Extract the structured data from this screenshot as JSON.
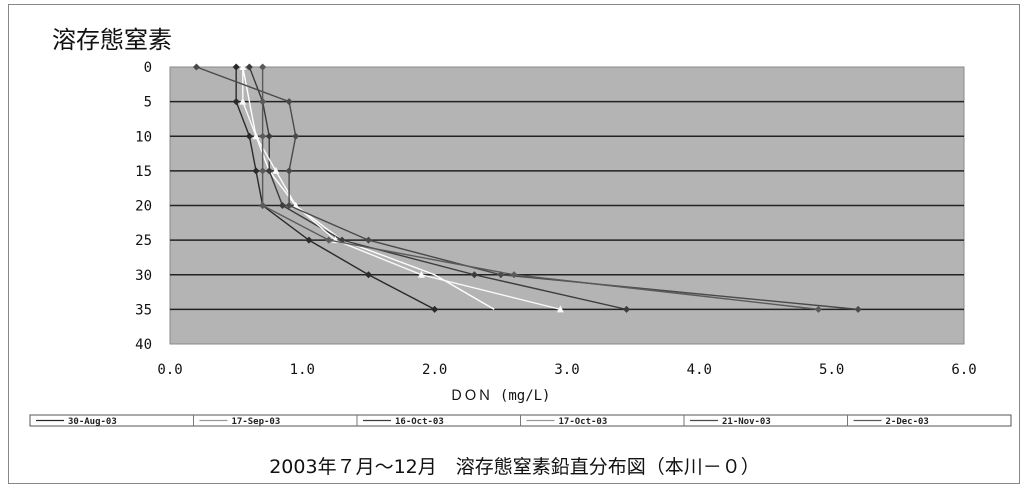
{
  "chart_data": {
    "type": "line",
    "title": "溶存態窒素",
    "caption": "2003年７月～12月　溶存態窒素鉛直分布図（本川－０）",
    "xlabel": "ＤＯＮ (mg/L)",
    "ylabel": "",
    "xlim": [
      0,
      6
    ],
    "ylim": [
      40,
      0
    ],
    "x_ticks": [
      "0.0",
      "1.0",
      "2.0",
      "3.0",
      "4.0",
      "5.0",
      "6.0"
    ],
    "y_ticks": [
      "0",
      "5",
      "10",
      "15",
      "20",
      "25",
      "30",
      "35",
      "40"
    ],
    "grid": "horizontal",
    "legend_position": "bottom",
    "depth": [
      0,
      5,
      10,
      15,
      20,
      25,
      30,
      35
    ],
    "series": [
      {
        "name": "30-Aug-03",
        "color": "#2a2a2a",
        "marker": "diamond",
        "values": [
          0.5,
          0.5,
          0.6,
          0.65,
          0.7,
          1.05,
          1.5,
          2.0
        ]
      },
      {
        "name": "17-Sep-03",
        "color": "#ffffff",
        "marker": "none",
        "values": [
          0.55,
          0.6,
          0.65,
          0.75,
          0.95,
          1.3,
          2.0,
          2.45
        ]
      },
      {
        "name": "16-Oct-03",
        "color": "#3c3c3c",
        "marker": "diamond",
        "values": [
          0.6,
          0.7,
          0.75,
          0.75,
          0.85,
          1.3,
          2.3,
          3.45
        ]
      },
      {
        "name": "17-Oct-03",
        "color": "#fafafa",
        "marker": "triangle",
        "values": [
          0.55,
          0.55,
          0.65,
          0.8,
          0.95,
          1.25,
          1.9,
          2.95
        ]
      },
      {
        "name": "21-Nov-03",
        "color": "#4a4a4a",
        "marker": "diamond",
        "values": [
          0.2,
          0.9,
          0.95,
          0.9,
          0.9,
          1.5,
          2.5,
          5.2
        ]
      },
      {
        "name": "2-Dec-03",
        "color": "#5a5a5a",
        "marker": "diamond",
        "values": [
          0.7,
          0.7,
          0.7,
          0.7,
          0.7,
          1.2,
          2.6,
          4.9
        ]
      }
    ],
    "legend_labels": [
      "30-Aug-03",
      "17-Sep-03",
      "16-Oct-03",
      "17-Oct-03",
      "21-Nov-03",
      "2-Dec-03"
    ]
  }
}
